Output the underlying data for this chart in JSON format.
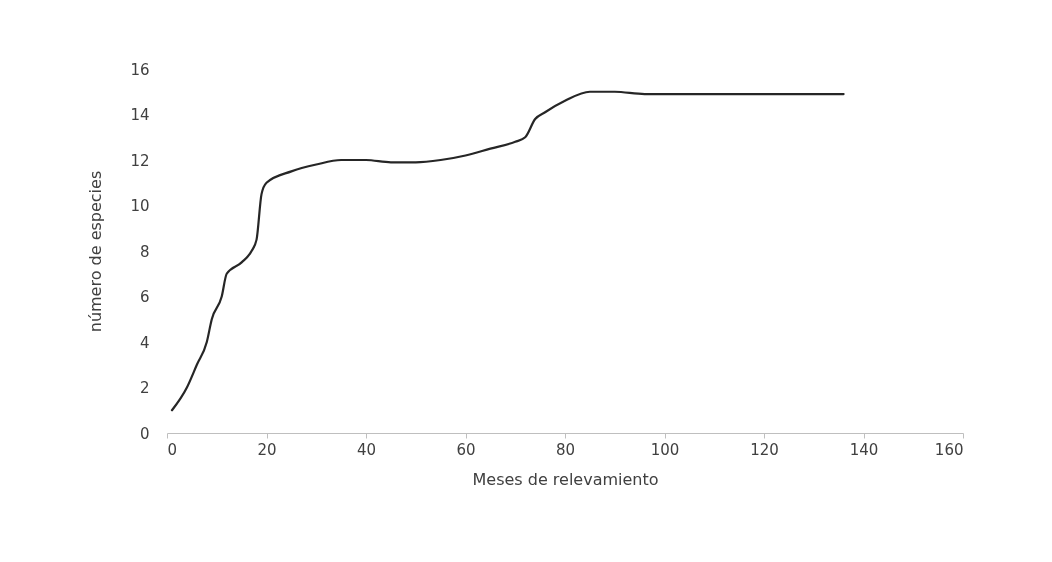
{
  "chart_data": {
    "type": "line",
    "xlabel": "Meses de relevamiento",
    "ylabel": "número de especies",
    "xlim": [
      0,
      160
    ],
    "xticks": [
      0,
      20,
      40,
      60,
      80,
      100,
      120,
      140,
      160
    ],
    "ylim": [
      0,
      16
    ],
    "yticks": [
      0,
      2,
      4,
      6,
      8,
      10,
      12,
      14,
      16
    ],
    "grid": false,
    "marker": "none",
    "line_style": "solid",
    "series": [
      {
        "color": "#262626",
        "x": [
          1,
          4,
          6,
          8,
          9,
          11,
          12,
          15,
          17,
          18,
          19,
          20,
          25,
          30,
          35,
          40,
          45,
          50,
          55,
          60,
          65,
          70,
          72,
          74,
          76,
          80,
          85,
          90,
          96,
          100,
          136
        ],
        "values": [
          1,
          2,
          3,
          4,
          5,
          6,
          7,
          7.5,
          8,
          8.5,
          10.5,
          11,
          11.5,
          11.8,
          12,
          12,
          11.9,
          11.9,
          12,
          12.2,
          12.5,
          12.8,
          13,
          13.8,
          14.1,
          14.6,
          15,
          15,
          14.9,
          14.9,
          14.9
        ]
      }
    ]
  }
}
